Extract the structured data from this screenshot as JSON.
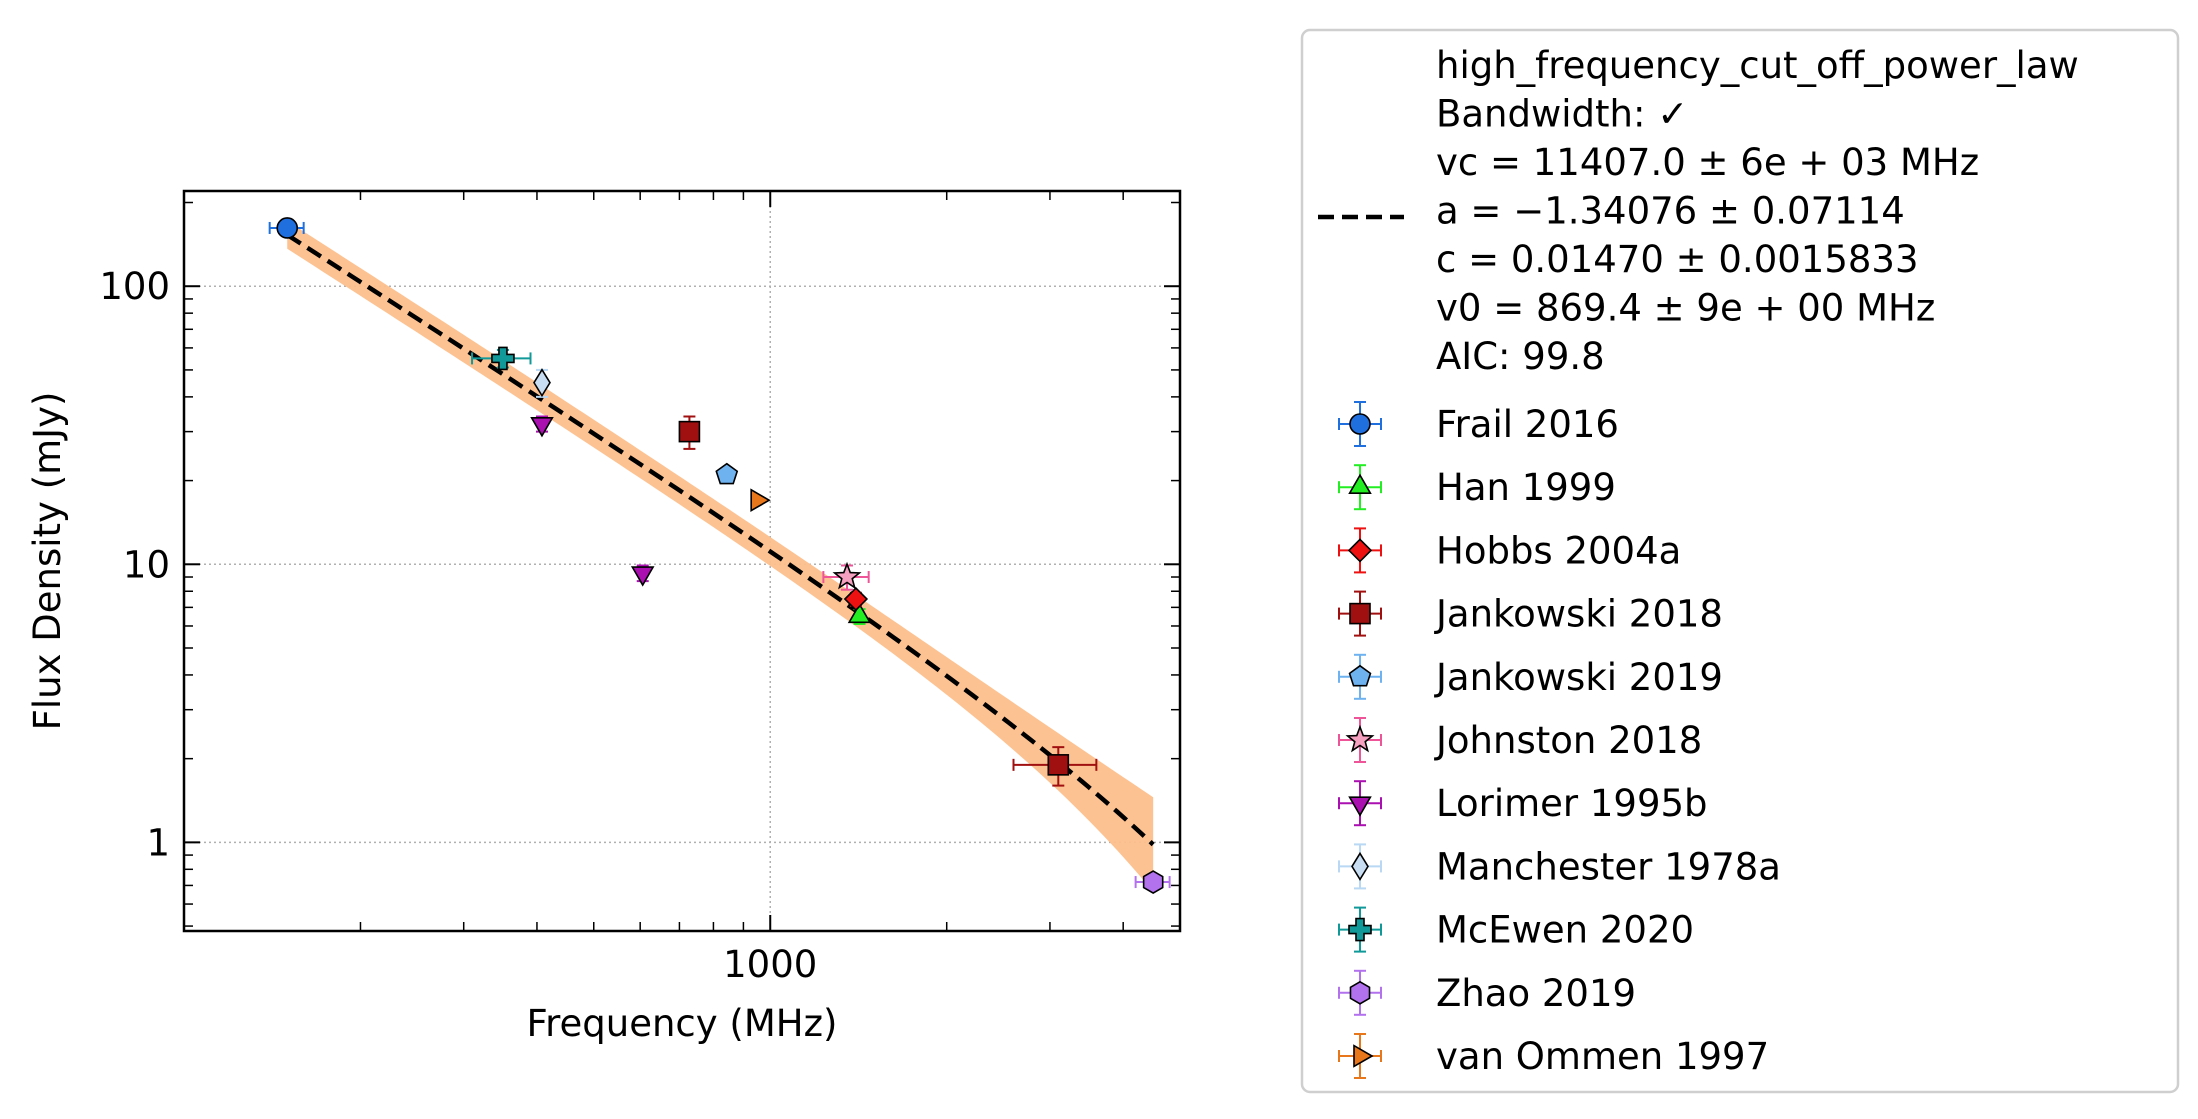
{
  "chart_data": {
    "type": "scatter",
    "xlabel": "Frequency (MHz)",
    "ylabel": "Flux Density (mJy)",
    "xscale": "log",
    "yscale": "log",
    "xlim": [
      100,
      5000
    ],
    "ylim": [
      0.48,
      220
    ],
    "xticks": [
      {
        "value": 1000,
        "label": "1000"
      }
    ],
    "yticks": [
      {
        "value": 1,
        "label": "1"
      },
      {
        "value": 10,
        "label": "10"
      },
      {
        "value": 100,
        "label": "100"
      }
    ],
    "grid": true,
    "legend_position": "outside-right",
    "fit": {
      "legend_lines": [
        "high_frequency_cut_off_power_law",
        "Bandwidth: ✓",
        "vc = 11407.0 ± 6e + 03 MHz",
        "a = −1.34076 ± 0.07114",
        "c = 0.01470 ± 0.0015833",
        "v0 = 869.4 ± 9e + 00 MHz",
        "AIC: 99.8"
      ],
      "vc": 11407.0,
      "a": -1.34076,
      "c": 0.0147,
      "v0": 869.4,
      "x_range": [
        150,
        4500
      ],
      "line_color": "#000000",
      "band_color": "#fdbf8c"
    },
    "series": [
      {
        "name": "Frail 2016",
        "marker": "circle",
        "color": "#1f6fdf",
        "err_color": "#1f6fdf",
        "points": [
          {
            "x": 150,
            "y": 162,
            "xerr": [
              10,
              10
            ],
            "yerr": [
              8,
              8
            ]
          }
        ]
      },
      {
        "name": "Han 1999",
        "marker": "triangle-up",
        "color": "#22ee22",
        "err_color": "#22ee22",
        "points": [
          {
            "x": 1420,
            "y": 6.5,
            "xerr": [
              0,
              0
            ],
            "yerr": [
              0.4,
              0.4
            ]
          }
        ]
      },
      {
        "name": "Hobbs 2004a",
        "marker": "diamond",
        "color": "#ee1111",
        "err_color": "#ee1111",
        "points": [
          {
            "x": 1400,
            "y": 7.5,
            "xerr": [
              0,
              0
            ],
            "yerr": [
              0.4,
              0.4
            ]
          }
        ]
      },
      {
        "name": "Jankowski 2018",
        "marker": "square",
        "color": "#a11010",
        "err_color": "#a11010",
        "points": [
          {
            "x": 728,
            "y": 30,
            "xerr": [
              20,
              20
            ],
            "yerr": [
              4,
              4
            ]
          },
          {
            "x": 3100,
            "y": 1.9,
            "xerr": [
              500,
              500
            ],
            "yerr": [
              0.3,
              0.3
            ]
          }
        ]
      },
      {
        "name": "Jankowski 2019",
        "marker": "pentagon",
        "color": "#6fb2f0",
        "err_color": "#6fb2f0",
        "points": [
          {
            "x": 843,
            "y": 21,
            "xerr": [
              0,
              0
            ],
            "yerr": [
              0,
              0
            ]
          }
        ]
      },
      {
        "name": "Johnston 2018",
        "marker": "star",
        "color": "#f6a0c0",
        "err_color": "#ee5599",
        "points": [
          {
            "x": 1352,
            "y": 9,
            "xerr": [
              120,
              120
            ],
            "yerr": [
              0.9,
              0.9
            ]
          }
        ]
      },
      {
        "name": "Lorimer 1995b",
        "marker": "triangle-down",
        "color": "#aa10b0",
        "err_color": "#aa10b0",
        "points": [
          {
            "x": 408,
            "y": 32,
            "xerr": [
              0,
              0
            ],
            "yerr": [
              2,
              2
            ]
          },
          {
            "x": 606,
            "y": 9.3,
            "xerr": [
              0,
              0
            ],
            "yerr": [
              0.6,
              0.6
            ]
          }
        ]
      },
      {
        "name": "Manchester 1978a",
        "marker": "thin-diamond",
        "color": "#c8ddf2",
        "err_color": "#b8d8f4",
        "points": [
          {
            "x": 408,
            "y": 45,
            "xerr": [
              0,
              0
            ],
            "yerr": [
              5,
              5
            ]
          }
        ]
      },
      {
        "name": "McEwen 2020",
        "marker": "plus",
        "color": "#119999",
        "err_color": "#119999",
        "points": [
          {
            "x": 350,
            "y": 55,
            "xerr": [
              40,
              40
            ],
            "yerr": [
              4,
              4
            ]
          }
        ]
      },
      {
        "name": "Zhao 2019",
        "marker": "hexagon",
        "color": "#b272ee",
        "err_color": "#b272ee",
        "points": [
          {
            "x": 4500,
            "y": 0.72,
            "xerr": [
              300,
              300
            ],
            "yerr": [
              0.04,
              0.04
            ]
          }
        ]
      },
      {
        "name": "van Ommen 1997",
        "marker": "triangle-right",
        "color": "#e8761a",
        "err_color": "#e8761a",
        "points": [
          {
            "x": 950,
            "y": 17,
            "xerr": [
              0,
              0
            ],
            "yerr": [
              0,
              0
            ]
          }
        ]
      }
    ]
  }
}
